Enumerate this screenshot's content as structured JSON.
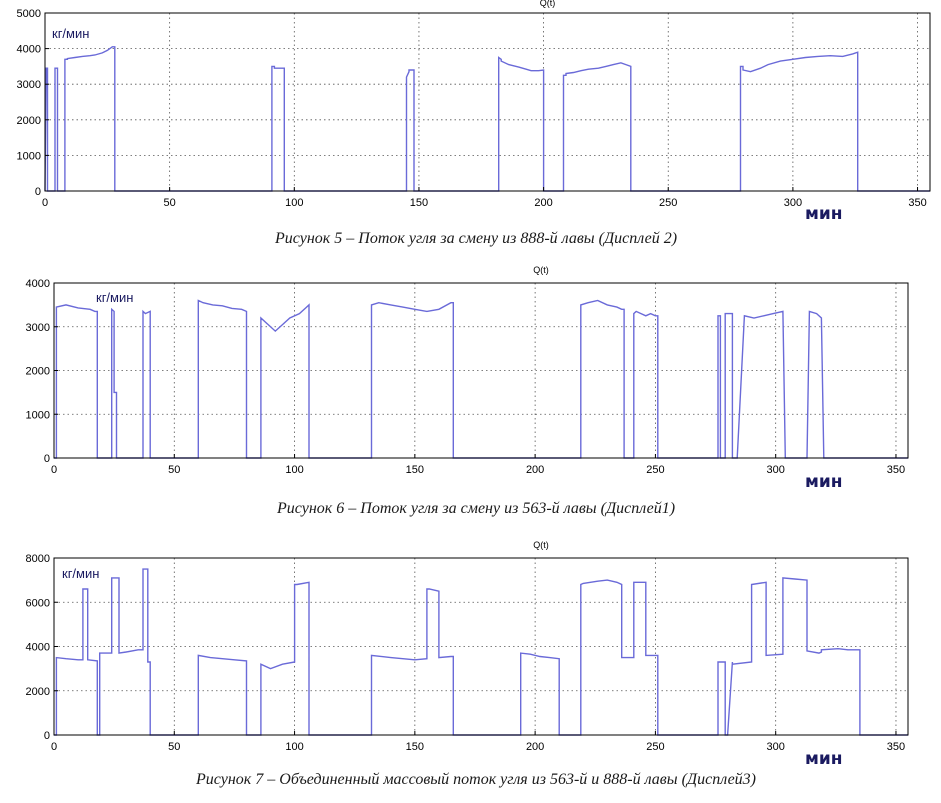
{
  "chart_data": [
    {
      "type": "line",
      "title": "Q(t)",
      "ylabel": "кг/мин",
      "xlabel": "мин",
      "caption": "Рисунок 5 –  Поток угля за смену из 888-й лавы (Дисплей 2)",
      "xlim": [
        0,
        355
      ],
      "ylim": [
        0,
        5000
      ],
      "xticks": [
        0,
        50,
        100,
        150,
        200,
        250,
        300,
        350
      ],
      "yticks": [
        0,
        1000,
        2000,
        3000,
        4000,
        5000
      ],
      "grid": true,
      "x": [
        0,
        0.5,
        1,
        1,
        4,
        4,
        5,
        5,
        8,
        8,
        9,
        9,
        12,
        15,
        18,
        20,
        23,
        25,
        27,
        28,
        28,
        29,
        91,
        91,
        92,
        92,
        96,
        96,
        97,
        97,
        145,
        145,
        146,
        146,
        148,
        148,
        149,
        149,
        182,
        182,
        183,
        183,
        186,
        190,
        193,
        195,
        198,
        200,
        200,
        201,
        208,
        208,
        209,
        209,
        212,
        215,
        218,
        222,
        225,
        228,
        231,
        233,
        235,
        235,
        236,
        279,
        279,
        280,
        280,
        283,
        287,
        290,
        295,
        300,
        305,
        310,
        315,
        320,
        324,
        326,
        326,
        327,
        355
      ],
      "y": [
        0,
        3450,
        3450,
        0,
        0,
        3450,
        3450,
        0,
        0,
        3700,
        3700,
        3720,
        3750,
        3780,
        3800,
        3820,
        3880,
        3950,
        4050,
        4050,
        0,
        0,
        0,
        3500,
        3500,
        3450,
        3450,
        0,
        0,
        0,
        0,
        3200,
        3350,
        3400,
        3400,
        0,
        0,
        0,
        0,
        3750,
        3700,
        3650,
        3550,
        3480,
        3420,
        3380,
        3380,
        3400,
        0,
        0,
        0,
        3250,
        3250,
        3300,
        3330,
        3380,
        3420,
        3450,
        3500,
        3550,
        3600,
        3550,
        3500,
        0,
        0,
        0,
        3500,
        3500,
        3400,
        3350,
        3450,
        3550,
        3650,
        3700,
        3750,
        3780,
        3800,
        3780,
        3850,
        3900,
        0,
        0,
        0
      ]
    },
    {
      "type": "line",
      "title": "Q(t)",
      "ylabel": "кг/мин",
      "xlabel": "мин",
      "caption": "Рисунок 6 – Поток угля за смену из 563-й лавы (Дисплей1)",
      "xlim": [
        0,
        355
      ],
      "ylim": [
        0,
        4000
      ],
      "xticks": [
        0,
        50,
        100,
        150,
        200,
        250,
        300,
        350
      ],
      "yticks": [
        0,
        1000,
        2000,
        3000,
        4000
      ],
      "grid": true,
      "x": [
        0,
        1,
        1,
        5,
        10,
        15,
        17,
        18,
        18,
        19,
        24,
        24,
        25,
        25,
        26,
        26,
        27,
        37,
        37,
        38,
        40,
        40,
        41,
        60,
        60,
        62,
        66,
        70,
        74,
        78,
        80,
        80,
        81,
        86,
        86,
        88,
        92,
        95,
        98,
        102,
        105,
        106,
        106,
        107,
        132,
        132,
        135,
        140,
        145,
        150,
        155,
        160,
        165,
        166,
        166,
        167,
        219,
        219,
        222,
        226,
        230,
        234,
        236,
        237,
        237,
        241,
        241,
        242,
        244,
        246,
        248,
        250,
        251,
        251,
        252,
        276,
        276,
        277,
        277,
        279,
        279,
        280,
        282,
        282,
        284,
        287,
        291,
        295,
        299,
        303,
        303,
        304,
        313,
        313,
        314,
        317,
        319,
        319,
        320,
        355
      ],
      "y": [
        0,
        0,
        3450,
        3500,
        3430,
        3400,
        3350,
        3350,
        0,
        0,
        0,
        3400,
        3350,
        1500,
        1500,
        0,
        0,
        0,
        3350,
        3300,
        3350,
        0,
        0,
        0,
        3600,
        3550,
        3500,
        3480,
        3420,
        3400,
        3350,
        0,
        0,
        0,
        3200,
        3100,
        2900,
        3050,
        3200,
        3300,
        3450,
        3500,
        0,
        0,
        0,
        3500,
        3550,
        3500,
        3450,
        3400,
        3350,
        3400,
        3550,
        3550,
        0,
        0,
        0,
        3500,
        3550,
        3600,
        3500,
        3450,
        3400,
        3400,
        0,
        0,
        3300,
        3350,
        3300,
        3250,
        3300,
        3250,
        3250,
        0,
        0,
        0,
        3250,
        3250,
        0,
        0,
        3300,
        3300,
        3300,
        0,
        0,
        3250,
        3200,
        3250,
        3300,
        3350,
        3350,
        0,
        0,
        0,
        3350,
        3300,
        3200,
        3200,
        0,
        0
      ]
    },
    {
      "type": "line",
      "title": "Q(t)",
      "ylabel": "кг/мин",
      "xlabel": "мин",
      "caption": "Рисунок 7 – Объединенный массовый поток угля из 563-й  и 888-й лавы (Дисплей3)",
      "xlim": [
        0,
        355
      ],
      "ylim": [
        0,
        8000
      ],
      "xticks": [
        0,
        50,
        100,
        150,
        200,
        250,
        300,
        350
      ],
      "yticks": [
        0,
        2000,
        4000,
        6000,
        8000
      ],
      "ytick_labels": [
        "0",
        "2000",
        "4000",
        "6\b000",
        "8000"
      ],
      "grid": true,
      "x": [
        0,
        1,
        1,
        5,
        10,
        12,
        12,
        14,
        14,
        18,
        18,
        19,
        19,
        24,
        24,
        27,
        27,
        30,
        35,
        37,
        37,
        39,
        39,
        40,
        40,
        60,
        60,
        65,
        70,
        75,
        80,
        80,
        86,
        86,
        90,
        95,
        100,
        100,
        101,
        106,
        106,
        107,
        132,
        132,
        140,
        145,
        150,
        155,
        155,
        156,
        160,
        160,
        165,
        166,
        166,
        194,
        194,
        198,
        202,
        206,
        210,
        210,
        219,
        219,
        220,
        226,
        230,
        234,
        236,
        236,
        241,
        241,
        246,
        246,
        250,
        251,
        251,
        276,
        276,
        279,
        279,
        280,
        282,
        282,
        290,
        290,
        296,
        296,
        303,
        303,
        308,
        313,
        313,
        318,
        319,
        319,
        326,
        330,
        335,
        335,
        336,
        355
      ],
      "y": [
        0,
        0,
        3500,
        3450,
        3400,
        3400,
        6600,
        6600,
        3400,
        3350,
        0,
        0,
        3700,
        3700,
        7100,
        7100,
        3700,
        3750,
        3850,
        3850,
        7500,
        7500,
        3300,
        3300,
        0,
        0,
        3600,
        3500,
        3450,
        3400,
        3350,
        0,
        0,
        3200,
        3000,
        3200,
        3300,
        6800,
        6800,
        6900,
        0,
        0,
        0,
        3600,
        3500,
        3450,
        3400,
        3450,
        6600,
        6600,
        6500,
        3500,
        3550,
        3550,
        0,
        0,
        3700,
        3650,
        3550,
        3500,
        3450,
        0,
        0,
        6800,
        6850,
        6950,
        7000,
        6900,
        6800,
        3500,
        3500,
        6900,
        6900,
        3600,
        3600,
        3600,
        0,
        0,
        3300,
        3300,
        0,
        0,
        3300,
        3200,
        3300,
        6800,
        6900,
        3600,
        3650,
        7100,
        7050,
        7000,
        3800,
        3700,
        3750,
        3850,
        3900,
        3850,
        3850,
        0,
        0,
        0
      ]
    }
  ]
}
